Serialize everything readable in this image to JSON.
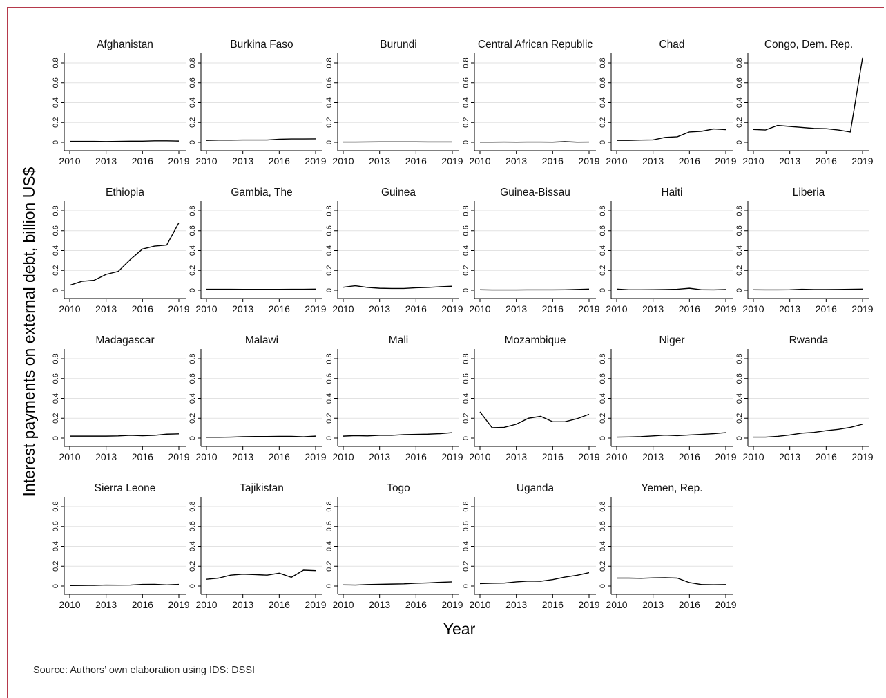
{
  "colors": {
    "frame": "#b5394b",
    "line": "#000000",
    "grid": "#e2e2e2",
    "accent_rule": "#c0392b"
  },
  "source": "Source: Authors’ own elaboration using IDS: DSSI",
  "chart_data": {
    "type": "line",
    "ylabel": "Interest payments on external debt, billion US$",
    "xlabel": "Year",
    "x": [
      2010,
      2011,
      2012,
      2013,
      2014,
      2015,
      2016,
      2017,
      2018,
      2019
    ],
    "xticks": [
      "2010",
      "2013",
      "2016",
      "2019"
    ],
    "yticks": [
      "0",
      "0.2",
      "0.4",
      "0.6",
      "0.8"
    ],
    "ylim": [
      0,
      0.9
    ],
    "grid": true,
    "panels": [
      {
        "title": "Afghanistan",
        "values": [
          0.01,
          0.01,
          0.01,
          0.008,
          0.01,
          0.012,
          0.012,
          0.015,
          0.015,
          0.013
        ]
      },
      {
        "title": "Burkina Faso",
        "values": [
          0.02,
          0.022,
          0.022,
          0.024,
          0.024,
          0.024,
          0.032,
          0.034,
          0.034,
          0.035
        ]
      },
      {
        "title": "Burundi",
        "values": [
          0.003,
          0.003,
          0.004,
          0.005,
          0.005,
          0.005,
          0.005,
          0.004,
          0.004,
          0.004
        ]
      },
      {
        "title": "Central African Republic",
        "values": [
          0.002,
          0.002,
          0.003,
          0.002,
          0.003,
          0.003,
          0.002,
          0.007,
          0.002,
          0.003
        ]
      },
      {
        "title": "Chad",
        "values": [
          0.02,
          0.02,
          0.023,
          0.025,
          0.05,
          0.056,
          0.105,
          0.112,
          0.135,
          0.128
        ]
      },
      {
        "title": "Congo, Dem. Rep.",
        "values": [
          0.13,
          0.125,
          0.17,
          0.16,
          0.15,
          0.14,
          0.138,
          0.125,
          0.105,
          0.85
        ]
      },
      {
        "title": "Ethiopia",
        "values": [
          0.05,
          0.09,
          0.1,
          0.16,
          0.19,
          0.31,
          0.415,
          0.445,
          0.455,
          0.68
        ]
      },
      {
        "title": "Gambia, The",
        "values": [
          0.01,
          0.01,
          0.01,
          0.009,
          0.009,
          0.009,
          0.009,
          0.01,
          0.01,
          0.012
        ]
      },
      {
        "title": "Guinea",
        "values": [
          0.03,
          0.045,
          0.028,
          0.02,
          0.018,
          0.018,
          0.025,
          0.028,
          0.035,
          0.04
        ]
      },
      {
        "title": "Guinea-Bissau",
        "values": [
          0.005,
          0.003,
          0.003,
          0.003,
          0.004,
          0.004,
          0.004,
          0.005,
          0.008,
          0.012
        ]
      },
      {
        "title": "Haiti",
        "values": [
          0.012,
          0.005,
          0.005,
          0.006,
          0.007,
          0.01,
          0.02,
          0.005,
          0.004,
          0.007
        ]
      },
      {
        "title": "Liberia",
        "values": [
          0.005,
          0.004,
          0.004,
          0.005,
          0.01,
          0.007,
          0.007,
          0.008,
          0.01,
          0.012
        ]
      },
      {
        "title": "Madagascar",
        "values": [
          0.02,
          0.02,
          0.02,
          0.02,
          0.022,
          0.028,
          0.024,
          0.028,
          0.04,
          0.043
        ]
      },
      {
        "title": "Malawi",
        "values": [
          0.008,
          0.008,
          0.01,
          0.014,
          0.016,
          0.016,
          0.018,
          0.018,
          0.013,
          0.02
        ]
      },
      {
        "title": "Mali",
        "values": [
          0.02,
          0.025,
          0.022,
          0.028,
          0.028,
          0.035,
          0.038,
          0.04,
          0.045,
          0.055
        ]
      },
      {
        "title": "Mozambique",
        "values": [
          0.265,
          0.105,
          0.108,
          0.14,
          0.2,
          0.22,
          0.165,
          0.165,
          0.195,
          0.24
        ]
      },
      {
        "title": "Niger",
        "values": [
          0.01,
          0.012,
          0.015,
          0.022,
          0.03,
          0.025,
          0.032,
          0.038,
          0.045,
          0.055
        ]
      },
      {
        "title": "Rwanda",
        "values": [
          0.01,
          0.01,
          0.018,
          0.032,
          0.05,
          0.058,
          0.075,
          0.088,
          0.108,
          0.14
        ]
      },
      {
        "title": "Sierra Leone",
        "values": [
          0.005,
          0.006,
          0.007,
          0.01,
          0.009,
          0.01,
          0.017,
          0.018,
          0.012,
          0.017
        ]
      },
      {
        "title": "Tajikistan",
        "values": [
          0.068,
          0.08,
          0.11,
          0.12,
          0.115,
          0.11,
          0.13,
          0.088,
          0.16,
          0.155
        ]
      },
      {
        "title": "Togo",
        "values": [
          0.012,
          0.01,
          0.015,
          0.018,
          0.02,
          0.022,
          0.028,
          0.032,
          0.038,
          0.042
        ]
      },
      {
        "title": "Uganda",
        "values": [
          0.025,
          0.028,
          0.03,
          0.042,
          0.05,
          0.048,
          0.065,
          0.09,
          0.108,
          0.135
        ]
      },
      {
        "title": "Yemen, Rep.",
        "values": [
          0.08,
          0.08,
          0.078,
          0.082,
          0.084,
          0.08,
          0.035,
          0.015,
          0.013,
          0.015
        ]
      }
    ]
  }
}
